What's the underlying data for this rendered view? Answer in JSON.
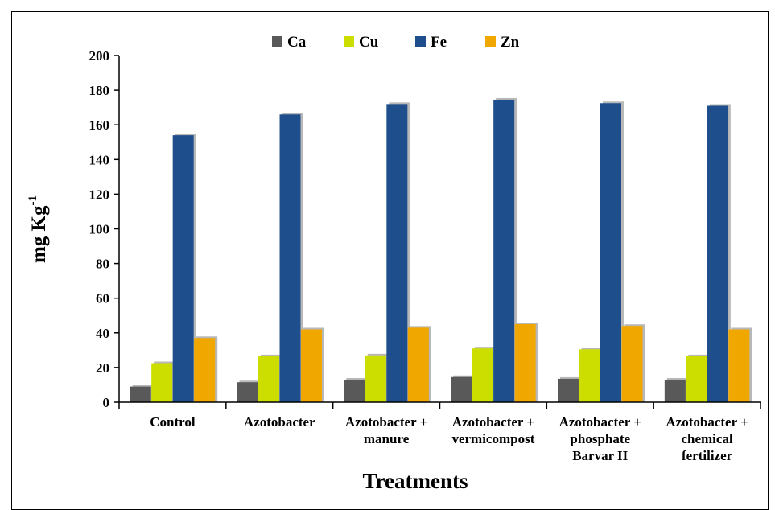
{
  "chart_data": {
    "type": "bar",
    "xlabel": "Treatments",
    "ylabel": "mg Kg",
    "ylabel_superscript": "-1",
    "ylim": [
      0,
      200
    ],
    "yticks": [
      0,
      20,
      40,
      60,
      80,
      100,
      120,
      140,
      160,
      180,
      200
    ],
    "legend_placement": "top-center",
    "grid": false,
    "categories": [
      [
        "Control"
      ],
      [
        "Azotobacter"
      ],
      [
        "Azotobacter +",
        "manure"
      ],
      [
        "Azotobacter +",
        "vermicompost"
      ],
      [
        "Azotobacter +",
        "phosphate",
        "Barvar II"
      ],
      [
        "Azotobacter +",
        "chemical",
        "fertilizer"
      ]
    ],
    "series": [
      {
        "name": "Ca",
        "color": "#595959",
        "values": [
          9,
          11.5,
          13,
          14.5,
          13.5,
          13
        ]
      },
      {
        "name": "Cu",
        "color": "#ccdd00",
        "values": [
          22.5,
          26.5,
          27,
          31,
          30.5,
          26.5
        ]
      },
      {
        "name": "Fe",
        "color": "#1f4e8c",
        "values": [
          154,
          166,
          172,
          174.5,
          172.5,
          171
        ]
      },
      {
        "name": "Zn",
        "color": "#f0a800",
        "values": [
          37,
          42,
          43,
          45,
          44,
          42
        ]
      }
    ]
  }
}
